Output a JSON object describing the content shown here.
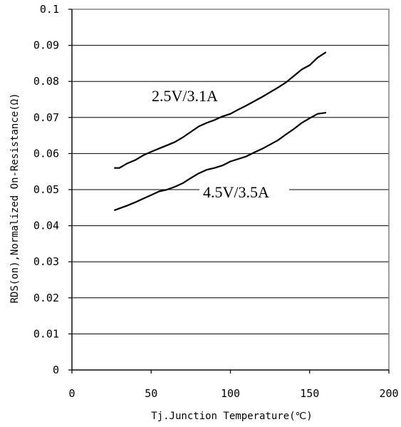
{
  "chart_data": {
    "type": "line",
    "title": "",
    "xlabel": "Tj.Junction Temperature(℃)",
    "ylabel": "RDS(on),Normalized On-Resistance(Ω)",
    "xlim": [
      0,
      200
    ],
    "ylim": [
      0,
      0.1
    ],
    "x_ticks": [
      "0",
      "50",
      "100",
      "150",
      "200"
    ],
    "x_tick_values": [
      0,
      50,
      100,
      150,
      200
    ],
    "y_ticks": [
      "0",
      "0.01",
      "0.02",
      "0.03",
      "0.04",
      "0.05",
      "0.06",
      "0.07",
      "0.08",
      "0.09",
      "0.1"
    ],
    "y_tick_values": [
      0,
      0.01,
      0.02,
      0.03,
      0.04,
      0.05,
      0.06,
      0.07,
      0.08,
      0.09,
      0.1
    ],
    "grid": "horizontal",
    "series": [
      {
        "name": "2.5V/3.1A",
        "x": [
          27,
          30,
          35,
          40,
          45,
          50,
          55,
          60,
          65,
          70,
          75,
          80,
          85,
          90,
          95,
          100,
          105,
          110,
          115,
          120,
          125,
          130,
          135,
          140,
          145,
          150,
          155,
          160
        ],
        "values": [
          0.056,
          0.056,
          0.0573,
          0.0582,
          0.0595,
          0.0605,
          0.0614,
          0.0623,
          0.0632,
          0.0645,
          0.066,
          0.0675,
          0.0685,
          0.0693,
          0.0703,
          0.071,
          0.0722,
          0.0733,
          0.0745,
          0.0757,
          0.077,
          0.0783,
          0.0797,
          0.0815,
          0.0833,
          0.0845,
          0.0866,
          0.088
        ]
      },
      {
        "name": "4.5V/3.5A",
        "x": [
          27,
          30,
          35,
          40,
          45,
          50,
          55,
          60,
          65,
          70,
          75,
          80,
          85,
          90,
          95,
          100,
          105,
          110,
          115,
          120,
          125,
          130,
          135,
          140,
          145,
          150,
          155,
          160
        ],
        "values": [
          0.0443,
          0.0448,
          0.0456,
          0.0465,
          0.0475,
          0.0485,
          0.0495,
          0.05,
          0.0508,
          0.0518,
          0.0532,
          0.0545,
          0.0555,
          0.056,
          0.0567,
          0.0578,
          0.0585,
          0.0592,
          0.0603,
          0.0613,
          0.0625,
          0.0637,
          0.0653,
          0.0668,
          0.0685,
          0.0698,
          0.071,
          0.0713
        ]
      }
    ]
  }
}
